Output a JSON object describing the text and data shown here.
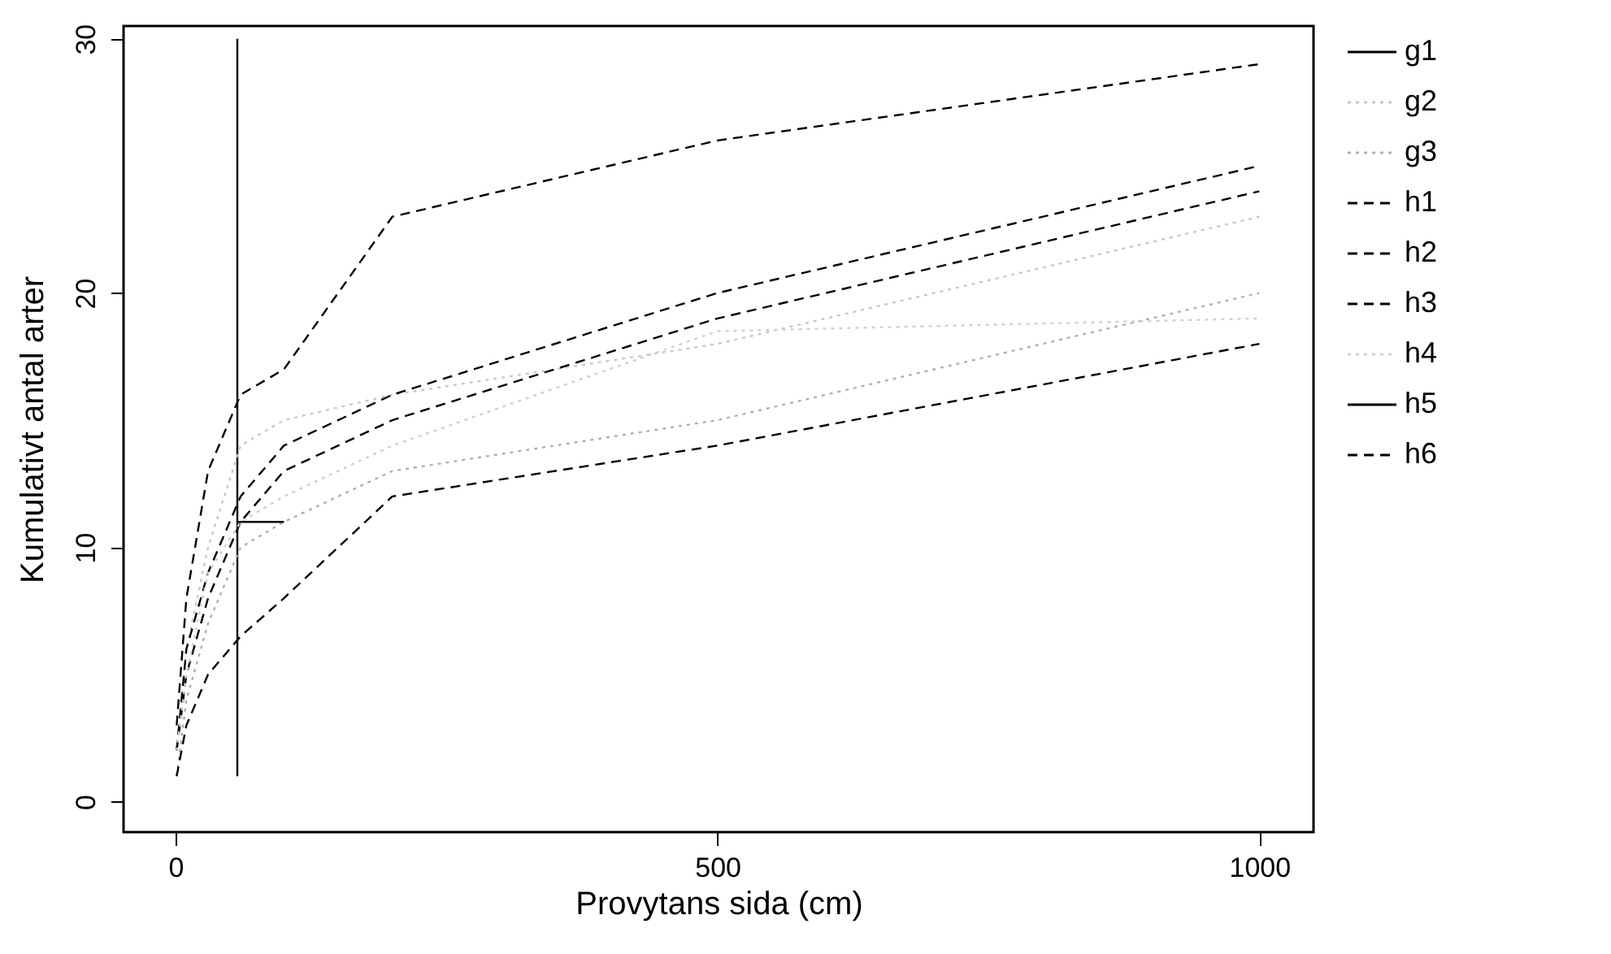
{
  "chart_data": {
    "type": "line",
    "xlabel": "Provytans sida (cm)",
    "ylabel": "Kumulativt antal arter",
    "xlim": [
      -48,
      1050
    ],
    "ylim": [
      -1.2,
      30.5
    ],
    "xticks": [
      0,
      500,
      1000
    ],
    "yticks": [
      0,
      10,
      20,
      30
    ],
    "grid": false,
    "legend": "right",
    "marker": "none",
    "series": [
      {
        "name": "g1",
        "color": "#000000",
        "line_style": "solid",
        "x": [
          57,
          57
        ],
        "values": [
          1,
          30
        ]
      },
      {
        "name": "g2",
        "color": "#c8c8c8",
        "line_style": "dotted",
        "x": [
          1,
          10,
          30,
          60,
          100,
          200,
          500,
          1000
        ],
        "values": [
          2,
          6,
          10,
          14,
          15,
          16,
          18,
          23
        ]
      },
      {
        "name": "g3",
        "color": "#b0b0b0",
        "line_style": "dotted",
        "x": [
          1,
          10,
          30,
          60,
          100,
          200,
          500,
          1000
        ],
        "values": [
          1,
          4,
          7,
          10,
          11,
          13,
          15,
          20
        ]
      },
      {
        "name": "h1",
        "color": "#000000",
        "line_style": "dashed",
        "x": [
          1,
          10,
          30,
          60,
          100,
          200,
          500,
          1000
        ],
        "values": [
          2,
          5,
          8,
          11,
          13,
          15,
          19,
          24
        ]
      },
      {
        "name": "h2",
        "color": "#000000",
        "line_style": "dashed",
        "x": [
          1,
          10,
          30,
          60,
          100,
          200,
          500,
          1000
        ],
        "values": [
          3,
          8,
          13,
          16,
          17,
          23,
          26,
          29
        ]
      },
      {
        "name": "h3",
        "color": "#000000",
        "line_style": "dashed",
        "x": [
          1,
          10,
          30,
          60,
          100,
          200,
          500,
          1000
        ],
        "values": [
          2,
          6,
          9,
          12,
          14,
          16,
          20,
          25
        ]
      },
      {
        "name": "h4",
        "color": "#d0d0d0",
        "line_style": "dotted",
        "x": [
          1,
          10,
          30,
          60,
          100,
          200,
          500,
          1000
        ],
        "values": [
          2,
          5,
          9,
          11,
          12,
          14,
          18.5,
          19
        ]
      },
      {
        "name": "h5",
        "color": "#000000",
        "line_style": "solid",
        "x": [
          57,
          100
        ],
        "values": [
          11,
          11
        ]
      },
      {
        "name": "h6",
        "color": "#000000",
        "line_style": "dashed",
        "x": [
          1,
          10,
          30,
          60,
          100,
          200,
          500,
          1000
        ],
        "values": [
          1,
          3,
          5,
          6.5,
          8,
          12,
          14,
          18
        ]
      }
    ]
  }
}
